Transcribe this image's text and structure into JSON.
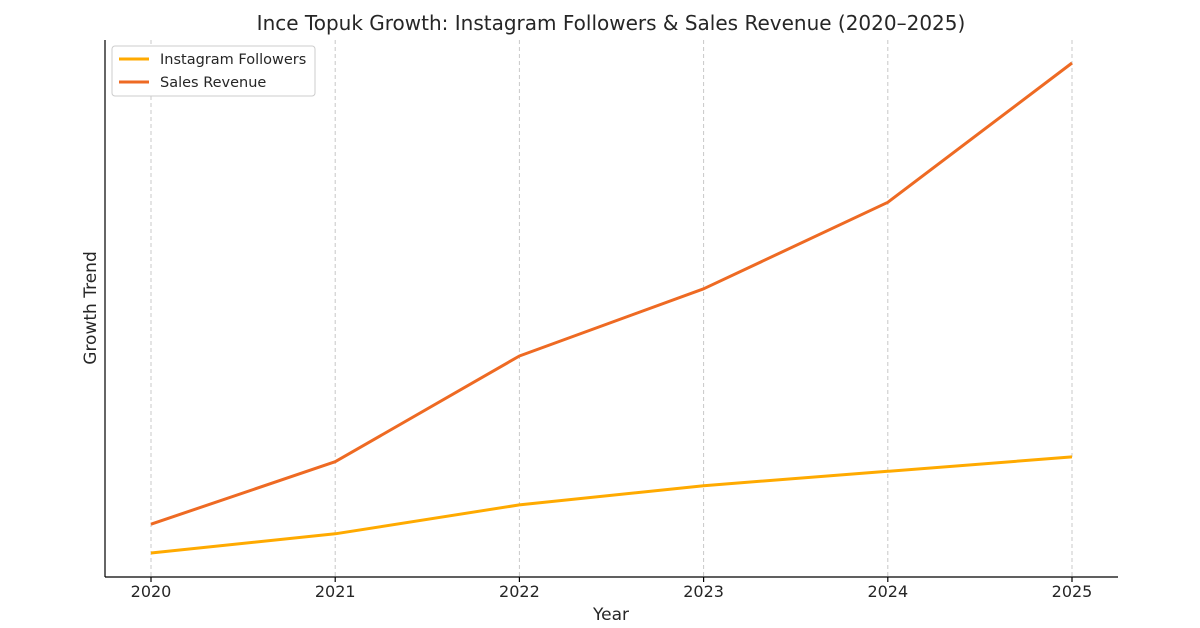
{
  "chart_data": {
    "type": "line",
    "title": "Ince Topuk Growth: Instagram Followers & Sales Revenue (2020–2025)",
    "xlabel": "Year",
    "ylabel": "Growth Trend",
    "categories": [
      "2020",
      "2021",
      "2022",
      "2023",
      "2024",
      "2025"
    ],
    "ylim": [
      0,
      10.7
    ],
    "y_ticks_shown": false,
    "grid": "vertical dashed",
    "legend_position": "top-left",
    "series": [
      {
        "name": "Instagram Followers",
        "color": "#FFAA00",
        "values": [
          0.5,
          0.9,
          1.5,
          1.9,
          2.2,
          2.5
        ]
      },
      {
        "name": "Sales Revenue",
        "color": "#EE6A23",
        "values": [
          1.1,
          2.4,
          4.6,
          6.0,
          7.8,
          10.7
        ]
      }
    ]
  }
}
